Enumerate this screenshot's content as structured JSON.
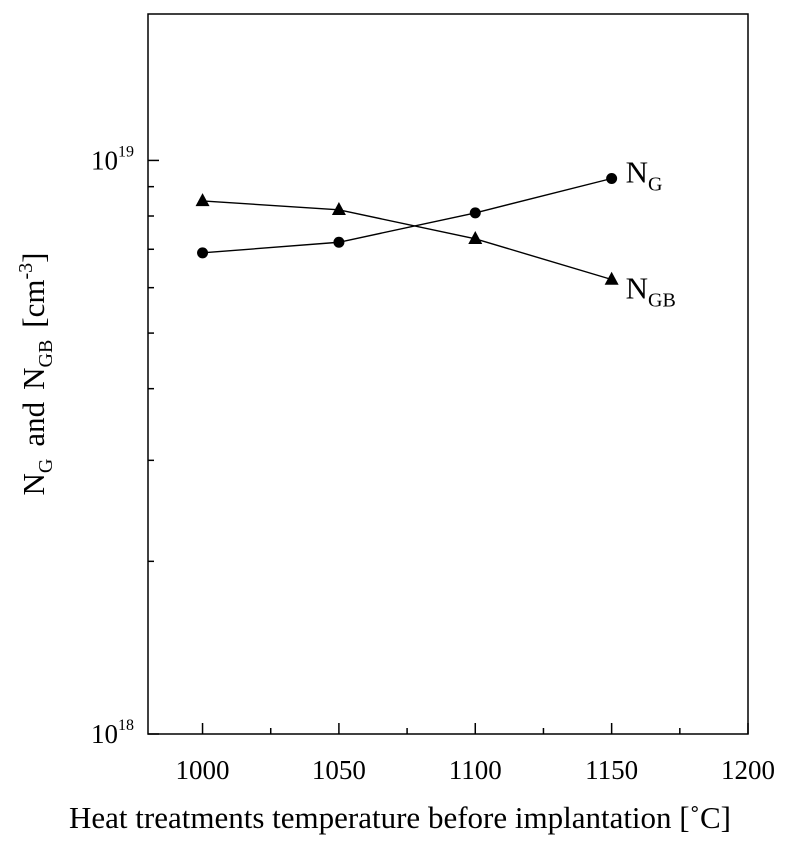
{
  "chart_data": {
    "type": "line",
    "xlabel": "Heat treatments temperature before implantation [˚C]",
    "ylabel": {
      "n1": "N",
      "n1_sub": "G",
      "and": "and",
      "n2": "N",
      "n2_sub": "GB",
      "unit": "[cm",
      "unit_exp": "-3",
      "unit_close": "]"
    },
    "xlim": [
      980,
      1200
    ],
    "xticks": [
      "1000",
      "1050",
      "1100",
      "1150",
      "1200"
    ],
    "ylim": [
      1e+18,
      1.8e+19
    ],
    "yscale": "log",
    "yticks": [
      {
        "value": 1e+19,
        "base": "10",
        "exp": "19"
      },
      {
        "value": 1e+18,
        "base": "10",
        "exp": "18"
      }
    ],
    "grid": false,
    "series": [
      {
        "name": "N",
        "name_sub": "G",
        "marker": "circle",
        "x": [
          1000,
          1050,
          1100,
          1150
        ],
        "y": [
          6.9e+18,
          7.2e+18,
          8.1e+18,
          9.3e+18
        ]
      },
      {
        "name": "N",
        "name_sub": "GB",
        "marker": "triangle",
        "x": [
          1000,
          1050,
          1100,
          1150
        ],
        "y": [
          8.5e+18,
          8.2e+18,
          7.3e+18,
          6.2e+18
        ]
      }
    ]
  }
}
